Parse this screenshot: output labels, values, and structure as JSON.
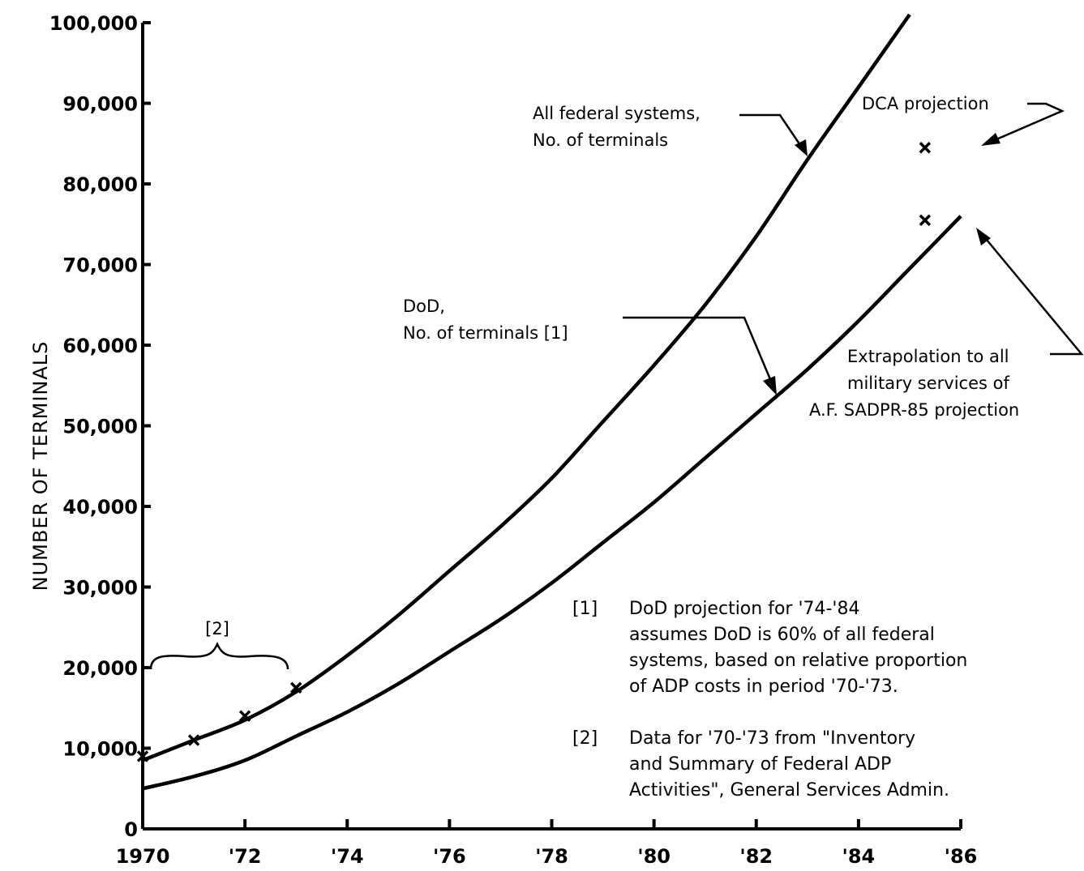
{
  "chart_data": {
    "type": "line",
    "ylabel": "NUMBER OF TERMINALS",
    "xlim": [
      1970,
      1986
    ],
    "ylim": [
      0,
      100000
    ],
    "grid": false,
    "y_ticks": [
      {
        "value": 0,
        "label": "0"
      },
      {
        "value": 10000,
        "label": "10,000"
      },
      {
        "value": 20000,
        "label": "20,000"
      },
      {
        "value": 30000,
        "label": "30,000"
      },
      {
        "value": 40000,
        "label": "40,000"
      },
      {
        "value": 50000,
        "label": "50,000"
      },
      {
        "value": 60000,
        "label": "60,000"
      },
      {
        "value": 70000,
        "label": "70,000"
      },
      {
        "value": 80000,
        "label": "80,000"
      },
      {
        "value": 90000,
        "label": "90,000"
      },
      {
        "value": 100000,
        "label": "100,000"
      }
    ],
    "x_ticks": [
      {
        "value": 1970,
        "label": "1970"
      },
      {
        "value": 1972,
        "label": "'72"
      },
      {
        "value": 1974,
        "label": "'74"
      },
      {
        "value": 1976,
        "label": "'76"
      },
      {
        "value": 1978,
        "label": "'78"
      },
      {
        "value": 1980,
        "label": "'80"
      },
      {
        "value": 1982,
        "label": "'82"
      },
      {
        "value": 1984,
        "label": "'84"
      },
      {
        "value": 1986,
        "label": "'86"
      }
    ],
    "series": [
      {
        "name": "All federal systems, No. of terminals",
        "x": [
          1970,
          1971,
          1972,
          1973,
          1974,
          1975,
          1976,
          1977,
          1978,
          1979,
          1980,
          1981,
          1982,
          1983,
          1984,
          1985
        ],
        "values": [
          8500,
          11000,
          13500,
          17000,
          21500,
          26500,
          32000,
          37500,
          43500,
          50500,
          57500,
          65000,
          73500,
          83000,
          92000,
          101000
        ]
      },
      {
        "name": "DoD, No. of terminals [1]",
        "x": [
          1970,
          1971,
          1972,
          1973,
          1974,
          1975,
          1976,
          1977,
          1978,
          1979,
          1980,
          1981,
          1982,
          1983,
          1984,
          1985,
          1986
        ],
        "values": [
          5000,
          6500,
          8500,
          11500,
          14500,
          18000,
          22000,
          26000,
          30500,
          35500,
          40500,
          46000,
          51500,
          57000,
          63000,
          69500,
          76000
        ]
      }
    ],
    "data_points": [
      {
        "series": "All federal systems, No. of terminals",
        "x": [
          1970,
          1971,
          1972,
          1973
        ],
        "values": [
          9000,
          11000,
          14000,
          17500
        ]
      },
      {
        "series": "DCA projection",
        "x": [
          1985.3
        ],
        "values": [
          84500
        ]
      },
      {
        "series": "Extrapolation to all military services of A.F. SADPR-85 projection",
        "x": [
          1985.3
        ],
        "values": [
          75500
        ]
      }
    ],
    "annotations": {
      "all_federal": [
        "All federal systems,",
        "No. of terminals"
      ],
      "dod": [
        "DoD,",
        "No. of terminals [1]"
      ],
      "dca": "DCA projection",
      "extrapolation": [
        "Extrapolation to all",
        "military services of",
        "A.F. SADPR-85 projection"
      ],
      "bracket": "[2]"
    },
    "notes": [
      {
        "marker": "[1]",
        "lines": [
          "DoD projection for '74-'84",
          "assumes DoD is 60% of all federal",
          "systems, based on relative proportion",
          "of ADP costs in period '70-'73."
        ]
      },
      {
        "marker": "[2]",
        "lines": [
          "Data for '70-'73 from \"Inventory",
          "and Summary of Federal ADP",
          "Activities\", General Services Admin."
        ]
      }
    ]
  }
}
